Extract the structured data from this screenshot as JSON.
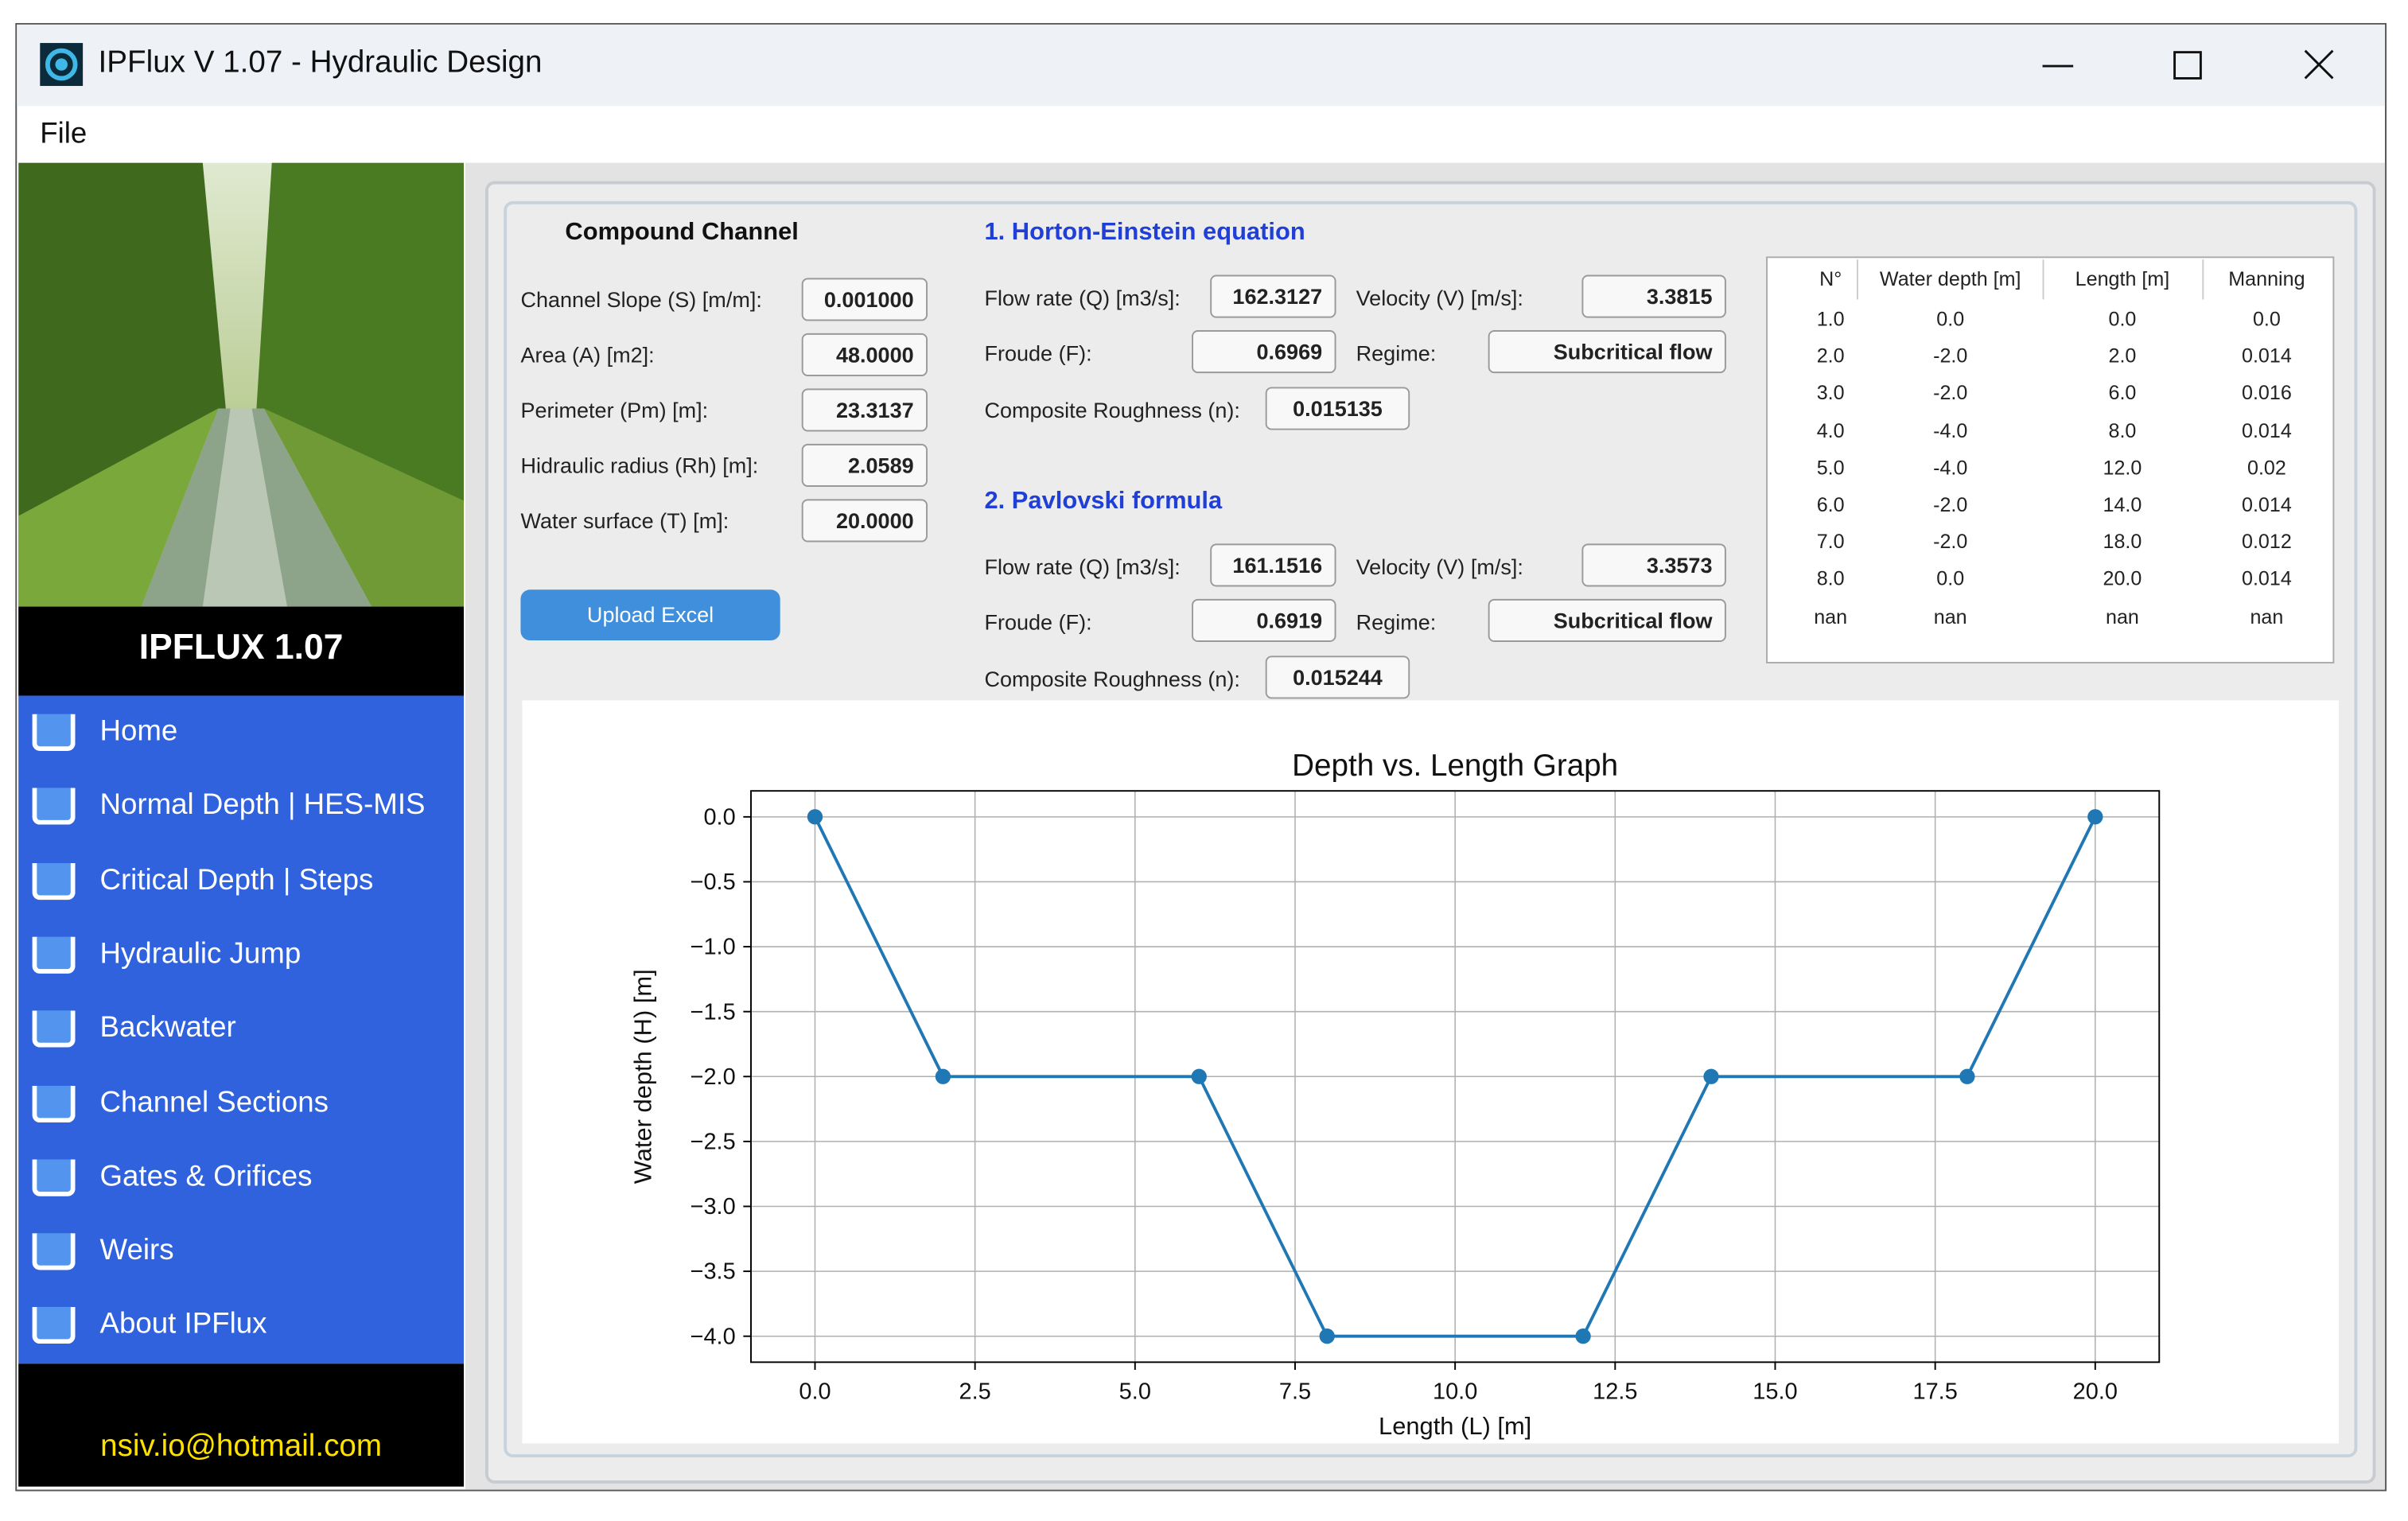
{
  "window": {
    "title": "IPFlux V 1.07 - Hydraulic Design"
  },
  "menu": [
    "File"
  ],
  "sidebar": {
    "brand": "IPFLUX 1.07",
    "items": [
      "Home",
      "Normal Depth | HES-MIS",
      "Critical Depth | Steps",
      "Hydraulic Jump",
      "Backwater",
      "Channel Sections",
      "Gates & Orifices",
      "Weirs",
      "About IPFlux"
    ],
    "email": "nsiv.io@hotmail.com"
  },
  "channel": {
    "title": "Compound Channel",
    "fields": [
      {
        "label": "Channel Slope (S) [m/m]:",
        "value": "0.001000"
      },
      {
        "label": "Area (A) [m2]:",
        "value": "48.0000"
      },
      {
        "label": "Perimeter (Pm) [m]:",
        "value": "23.3137"
      },
      {
        "label": "Hidraulic radius (Rh) [m]:",
        "value": "2.0589"
      },
      {
        "label": "Water surface (T) [m]:",
        "value": "20.0000"
      }
    ],
    "button": "Upload Excel"
  },
  "methods": [
    {
      "title": "1. Horton-Einstein equation",
      "flow_rate": {
        "label": "Flow rate (Q) [m3/s]:",
        "value": "162.3127"
      },
      "velocity": {
        "label": "Velocity (V) [m/s]:",
        "value": "3.3815"
      },
      "froude": {
        "label": "Froude (F):",
        "value": "0.6969"
      },
      "regime": {
        "label": "Regime:",
        "value": "Subcritical flow"
      },
      "roughness": {
        "label": "Composite Roughness (n):",
        "value": "0.015135"
      }
    },
    {
      "title": "2. Pavlovski formula",
      "flow_rate": {
        "label": "Flow rate (Q) [m3/s]:",
        "value": "161.1516"
      },
      "velocity": {
        "label": "Velocity (V) [m/s]:",
        "value": "3.3573"
      },
      "froude": {
        "label": "Froude (F):",
        "value": "0.6919"
      },
      "regime": {
        "label": "Regime:",
        "value": "Subcritical flow"
      },
      "roughness": {
        "label": "Composite Roughness (n):",
        "value": "0.015244"
      }
    }
  ],
  "table": {
    "headers": [
      "N°",
      "Water depth [m]",
      "Length [m]",
      "Manning"
    ],
    "rows": [
      [
        "1.0",
        "0.0",
        "0.0",
        "0.0"
      ],
      [
        "2.0",
        "-2.0",
        "2.0",
        "0.014"
      ],
      [
        "3.0",
        "-2.0",
        "6.0",
        "0.016"
      ],
      [
        "4.0",
        "-4.0",
        "8.0",
        "0.014"
      ],
      [
        "5.0",
        "-4.0",
        "12.0",
        "0.02"
      ],
      [
        "6.0",
        "-2.0",
        "14.0",
        "0.014"
      ],
      [
        "7.0",
        "-2.0",
        "18.0",
        "0.012"
      ],
      [
        "8.0",
        "0.0",
        "20.0",
        "0.014"
      ],
      [
        "nan",
        "nan",
        "nan",
        "nan"
      ]
    ]
  },
  "chart_data": {
    "type": "line",
    "title": "Depth vs. Length Graph",
    "x_label": "Length (L) [m]",
    "y_label": "Water depth (H) [m]",
    "x": [
      0,
      2,
      6,
      8,
      12,
      14,
      18,
      20
    ],
    "values": [
      0,
      -2,
      -2,
      -4,
      -4,
      -2,
      -2,
      0
    ],
    "color": "#1f77b4",
    "grid": true,
    "xlim": [
      -1,
      21
    ],
    "ylim": [
      -4.2,
      0.2
    ],
    "xticks": [
      {
        "value": 0,
        "label": "0.0"
      },
      2.5,
      {
        "value": 5,
        "label": "5.0"
      },
      7.5,
      {
        "value": 10,
        "label": "10.0"
      },
      12.5,
      {
        "value": 15,
        "label": "15.0"
      },
      17.5,
      {
        "value": 20,
        "label": "20.0"
      }
    ],
    "yticks": [
      {
        "value": 0,
        "label": "0.0"
      },
      {
        "value": -0.5,
        "label": "−0.5"
      },
      {
        "value": -1,
        "label": "−1.0"
      },
      {
        "value": -1.5,
        "label": "−1.5"
      },
      {
        "value": -2,
        "label": "−2.0"
      },
      {
        "value": -2.5,
        "label": "−2.5"
      },
      {
        "value": -3,
        "label": "−3.0"
      },
      {
        "value": -3.5,
        "label": "−3.5"
      },
      {
        "value": -4,
        "label": "−4.0"
      }
    ]
  }
}
